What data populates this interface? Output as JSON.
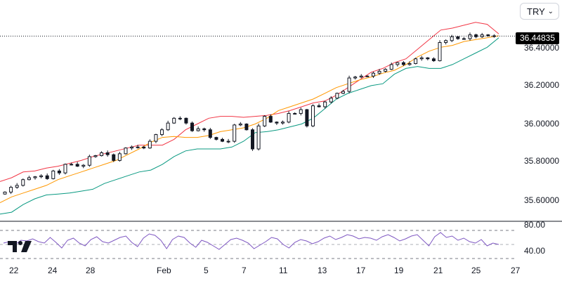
{
  "currency_selector": {
    "value": "TRY",
    "icon": "chevron-down-icon"
  },
  "last_price": "36.44835",
  "logo": {
    "name": "TradingView",
    "icon": "tv-logo-icon"
  },
  "colors": {
    "candle": "#131722",
    "upper_band": "#f23645",
    "basis": "#ff9800",
    "lower_band": "#089981",
    "rsi": "#7e57c2",
    "grid_dash": "#787b86",
    "price_line": "#131722"
  },
  "chart_data": [
    {
      "type": "candlestick",
      "title": "",
      "x_axis": {
        "tick_labels": [
          "22",
          "24",
          "28",
          "Feb",
          "5",
          "7",
          "11",
          "13",
          "17",
          "19",
          "21",
          "25",
          "27"
        ]
      },
      "y_axis": {
        "tick_labels": [
          "35.60000",
          "35.80000",
          "36.00000",
          "36.20000",
          "36.40000"
        ],
        "range": [
          35.52,
          36.54
        ]
      },
      "price_line": 36.44835,
      "series": [
        {
          "kind": "close",
          "values": [
            35.635,
            35.66,
            35.67,
            35.7,
            35.71,
            35.715,
            35.72,
            35.705,
            35.745,
            35.735,
            35.78,
            35.78,
            35.77,
            35.775,
            35.82,
            35.825,
            35.84,
            35.83,
            35.8,
            35.835,
            35.865,
            35.87,
            35.87,
            35.865,
            35.9,
            35.935,
            35.96,
            35.995,
            36.02,
            36.02,
            35.995,
            35.955,
            35.965,
            35.96,
            35.92,
            35.91,
            35.9,
            35.9,
            35.985,
            35.99,
            35.96,
            35.86,
            35.98,
            36.03,
            36.0,
            35.995,
            36.0,
            36.045,
            36.045,
            36.065,
            35.98,
            36.085,
            36.08,
            36.105,
            36.125,
            36.15,
            36.16,
            36.23,
            36.235,
            36.24,
            36.24,
            36.255,
            36.265,
            36.275,
            36.3,
            36.31,
            36.3,
            36.305,
            36.33,
            36.335,
            36.33,
            36.32,
            36.415,
            36.425,
            36.445,
            36.435,
            36.435,
            36.455,
            36.445,
            36.455,
            36.45,
            36.45
          ]
        },
        {
          "kind": "upper_band",
          "values": [
            35.69,
            35.71,
            35.74,
            35.745,
            35.76,
            35.77,
            35.785,
            35.8,
            35.82,
            35.835,
            35.85,
            35.865,
            35.88,
            35.88,
            35.88,
            35.91,
            35.96,
            35.99,
            36.02,
            36.03,
            36.03,
            36.025,
            36.03,
            36.035,
            36.045,
            36.06,
            36.08,
            36.1,
            36.11,
            36.14,
            36.18,
            36.22,
            36.26,
            36.28,
            36.31,
            36.33,
            36.38,
            36.43,
            36.48,
            36.49,
            36.505,
            36.52,
            36.51,
            36.46
          ]
        },
        {
          "kind": "basis",
          "values": [
            35.58,
            35.61,
            35.63,
            35.65,
            35.67,
            35.7,
            35.72,
            35.74,
            35.76,
            35.78,
            35.8,
            35.83,
            35.86,
            35.895,
            35.92,
            35.925,
            35.92,
            35.92,
            35.93,
            35.95,
            35.96,
            35.97,
            35.99,
            36.02,
            36.06,
            36.08,
            36.1,
            36.12,
            36.15,
            36.18,
            36.2,
            36.22,
            36.235,
            36.255,
            36.27,
            36.3,
            36.34,
            36.37,
            36.39,
            36.4,
            36.42,
            36.43,
            36.44,
            36.45
          ]
        },
        {
          "kind": "lower_band",
          "values": [
            35.52,
            35.53,
            35.57,
            35.6,
            35.62,
            35.625,
            35.63,
            35.64,
            35.65,
            35.68,
            35.7,
            35.72,
            35.74,
            35.75,
            35.78,
            35.82,
            35.85,
            35.86,
            35.86,
            35.86,
            35.87,
            35.9,
            35.945,
            35.95,
            35.96,
            35.975,
            35.99,
            36.02,
            36.07,
            36.12,
            36.15,
            36.17,
            36.19,
            36.2,
            36.25,
            36.28,
            36.29,
            36.28,
            36.28,
            36.3,
            36.33,
            36.36,
            36.39,
            36.44
          ]
        }
      ]
    },
    {
      "type": "line",
      "title": "",
      "y_axis": {
        "tick_labels": [
          "80.00",
          "40.00"
        ],
        "range": [
          20,
          100
        ]
      },
      "series": [
        {
          "kind": "oscillator",
          "values": [
            62,
            64,
            60,
            66,
            65,
            68,
            64,
            62,
            70,
            63,
            55,
            66,
            69,
            62,
            58,
            67,
            71,
            64,
            62,
            66,
            70,
            72,
            63,
            57,
            69,
            75,
            73,
            66,
            54,
            67,
            72,
            70,
            62,
            56,
            66,
            63,
            58,
            53,
            60,
            67,
            69,
            66,
            62,
            54,
            59,
            64,
            70,
            68,
            60,
            55,
            63,
            67,
            65,
            61,
            64,
            69,
            72,
            67,
            70,
            74,
            72,
            68,
            70,
            69,
            66,
            71,
            74,
            70,
            65,
            68,
            72,
            74,
            66,
            58,
            71,
            77,
            70,
            72,
            66,
            69,
            64,
            62,
            67,
            58,
            62,
            60
          ]
        }
      ]
    }
  ]
}
